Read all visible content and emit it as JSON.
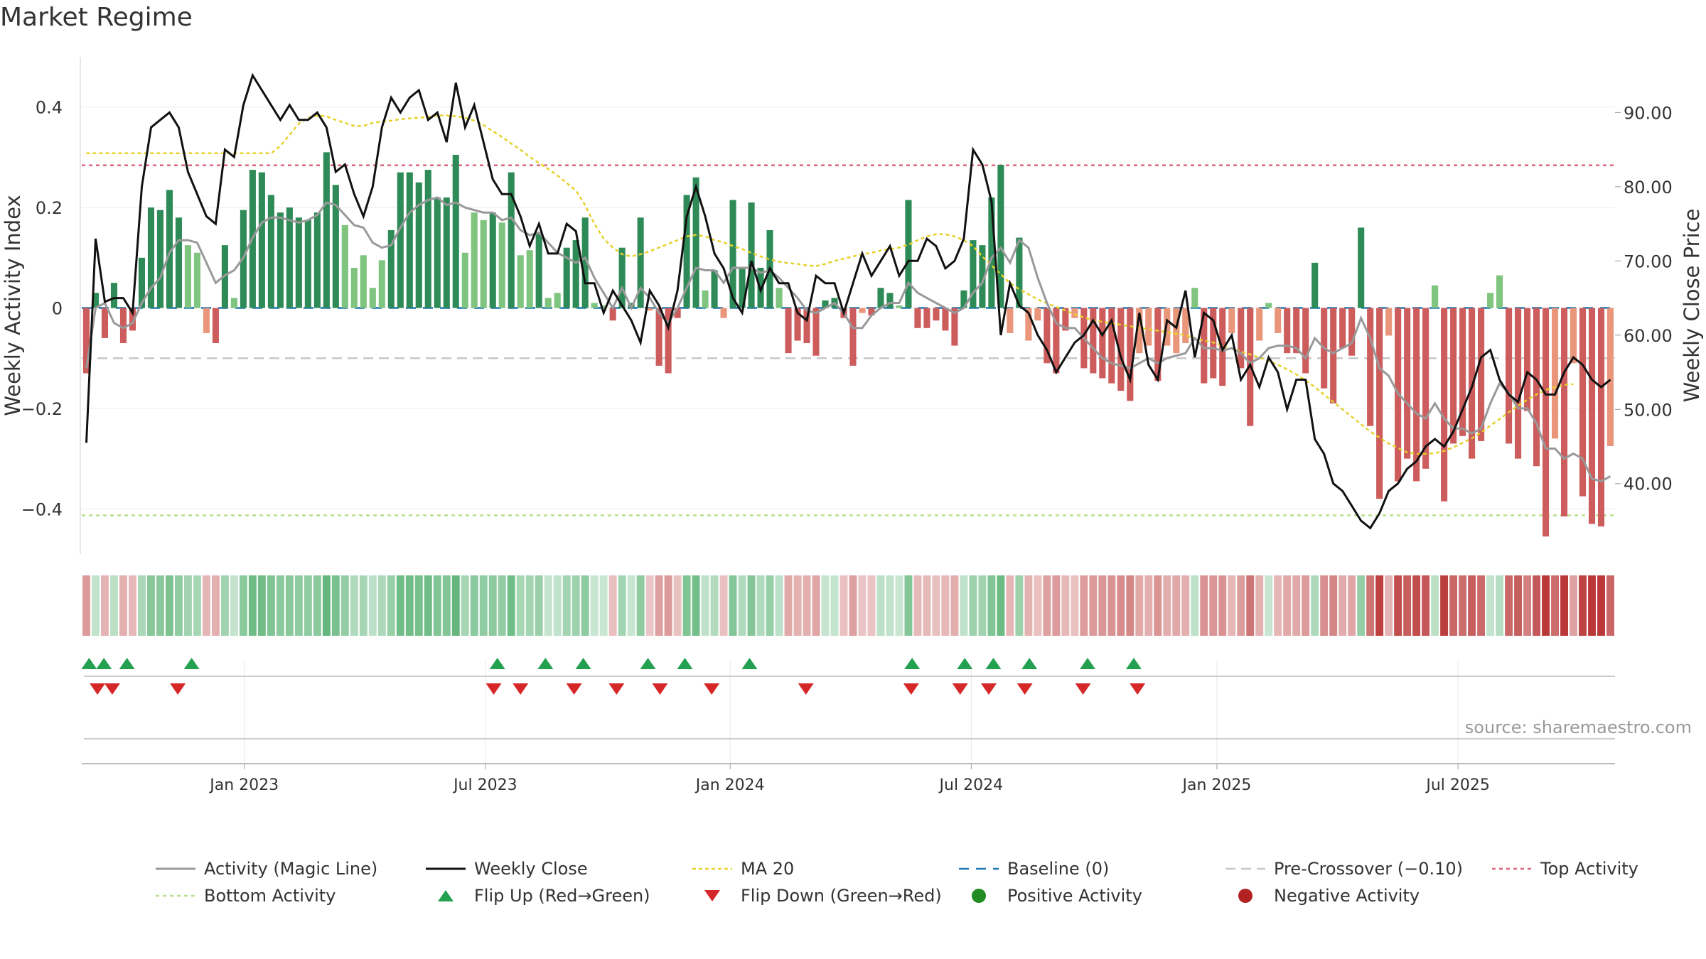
{
  "page": {
    "title": "Market Regime",
    "source": "source: sharemaestro.com"
  },
  "colors": {
    "pos_dark": "#2e8b57",
    "pos_light": "#7fc47f",
    "neg_dark": "#cd5c5c",
    "neg_light": "#e9967a",
    "close": "#111111",
    "magic": "#999999",
    "ma": "#e6d12a",
    "baseline": "#1f77b4",
    "precross": "#c8c8c8",
    "top": "#d9667a",
    "bottom": "#b5e08a",
    "flip_up": "#23a050",
    "flip_down": "#d62728"
  },
  "chart_data": {
    "type": "bar",
    "x_axis": {
      "tick_labels": [
        "Jan 2023",
        "Jul 2023",
        "Jan 2024",
        "Jul 2024",
        "Jan 2025",
        "Jul 2025"
      ],
      "tick_weeks": [
        17.6,
        43.7,
        70.2,
        96.3,
        122.9,
        149.0
      ]
    },
    "y_left": {
      "label": "Weekly Activity Index",
      "ylim": [
        -0.49,
        0.5
      ],
      "ticks": [
        0.4,
        0.2,
        0,
        -0.2,
        -0.4
      ],
      "tick_labels": [
        "0.4",
        "0.2",
        "0",
        "−0.2",
        "−0.4"
      ]
    },
    "y_right": {
      "label": "Weekly Close Price",
      "ylim": [
        30.5,
        97.5
      ],
      "ticks": [
        90,
        80,
        70,
        60,
        50,
        40
      ],
      "tick_labels": [
        "90.00",
        "80.00",
        "70.00",
        "60.00",
        "50.00",
        "40.00"
      ]
    },
    "levels": {
      "top_activity": 0.284,
      "bottom_activity": -0.413,
      "pre_crossover": -0.1,
      "baseline": 0
    },
    "activity": [
      -0.13,
      0.03,
      -0.06,
      0.05,
      -0.07,
      -0.045,
      0.1,
      0.2,
      0.195,
      0.235,
      0.18,
      0.125,
      0.11,
      -0.05,
      -0.07,
      0.125,
      0.02,
      0.195,
      0.275,
      0.27,
      0.225,
      0.19,
      0.2,
      0.18,
      0.175,
      0.19,
      0.31,
      0.245,
      0.165,
      0.08,
      0.105,
      0.04,
      0.095,
      0.155,
      0.27,
      0.27,
      0.25,
      0.275,
      0.22,
      0.22,
      0.305,
      0.11,
      0.19,
      0.175,
      0.19,
      0.17,
      0.27,
      0.105,
      0.115,
      0.15,
      0.02,
      0.03,
      0.12,
      0.135,
      0.18,
      0.01,
      0.005,
      -0.025,
      0.12,
      0.01,
      0.18,
      -0.005,
      -0.115,
      -0.13,
      -0.02,
      0.225,
      0.26,
      0.035,
      0.075,
      -0.02,
      0.215,
      0.08,
      0.21,
      0.08,
      0.155,
      0.04,
      -0.09,
      -0.065,
      -0.07,
      -0.095,
      0.015,
      0.02,
      -0.02,
      -0.115,
      -0.01,
      -0.015,
      0.04,
      0.03,
      0.005,
      0.215,
      -0.04,
      -0.04,
      -0.025,
      -0.045,
      -0.075,
      0.035,
      0.135,
      0.125,
      0.22,
      0.285,
      -0.05,
      0.14,
      -0.065,
      -0.025,
      -0.11,
      -0.13,
      -0.045,
      -0.02,
      -0.12,
      -0.13,
      -0.14,
      -0.15,
      -0.165,
      -0.185,
      -0.09,
      -0.075,
      -0.145,
      -0.075,
      -0.09,
      -0.07,
      0.04,
      -0.15,
      -0.14,
      -0.155,
      -0.05,
      -0.12,
      -0.235,
      -0.065,
      0.01,
      -0.05,
      -0.09,
      -0.09,
      -0.13,
      0.09,
      -0.16,
      -0.19,
      -0.08,
      -0.095,
      0.16,
      -0.235,
      -0.38,
      -0.055,
      -0.345,
      -0.3,
      -0.345,
      -0.32,
      0.045,
      -0.385,
      -0.27,
      -0.255,
      -0.3,
      -0.265,
      0.03,
      0.065,
      -0.27,
      -0.3,
      -0.205,
      -0.315,
      -0.455,
      -0.26,
      -0.415,
      -0.11,
      -0.375,
      -0.43,
      -0.435,
      -0.275
    ],
    "magic_line": [
      -0.12,
      0.0,
      0.01,
      -0.03,
      -0.04,
      -0.03,
      0.01,
      0.04,
      0.06,
      0.11,
      0.135,
      0.135,
      0.13,
      0.09,
      0.05,
      0.065,
      0.075,
      0.1,
      0.14,
      0.17,
      0.18,
      0.18,
      0.175,
      0.17,
      0.175,
      0.185,
      0.21,
      0.205,
      0.185,
      0.165,
      0.16,
      0.13,
      0.12,
      0.125,
      0.16,
      0.19,
      0.205,
      0.215,
      0.22,
      0.205,
      0.21,
      0.2,
      0.195,
      0.19,
      0.19,
      0.175,
      0.18,
      0.155,
      0.145,
      0.15,
      0.13,
      0.11,
      0.1,
      0.09,
      0.1,
      0.06,
      0.03,
      0.0,
      0.04,
      0.0,
      0.04,
      0.02,
      -0.01,
      -0.03,
      0.0,
      0.04,
      0.08,
      0.075,
      0.075,
      0.05,
      0.08,
      0.08,
      0.08,
      0.07,
      0.075,
      0.06,
      0.04,
      0.02,
      -0.005,
      -0.01,
      0.0,
      0.01,
      -0.01,
      -0.04,
      -0.04,
      -0.015,
      0.0,
      0.01,
      0.01,
      0.05,
      0.03,
      0.02,
      0.01,
      0.0,
      -0.01,
      0.0,
      0.03,
      0.05,
      0.1,
      0.12,
      0.09,
      0.135,
      0.12,
      0.06,
      0.01,
      -0.03,
      -0.04,
      -0.04,
      -0.06,
      -0.08,
      -0.1,
      -0.11,
      -0.115,
      -0.12,
      -0.11,
      -0.1,
      -0.11,
      -0.1,
      -0.095,
      -0.09,
      -0.06,
      -0.08,
      -0.08,
      -0.085,
      -0.08,
      -0.09,
      -0.11,
      -0.1,
      -0.08,
      -0.075,
      -0.075,
      -0.08,
      -0.1,
      -0.06,
      -0.08,
      -0.09,
      -0.08,
      -0.07,
      -0.02,
      -0.06,
      -0.12,
      -0.135,
      -0.17,
      -0.19,
      -0.21,
      -0.22,
      -0.19,
      -0.22,
      -0.24,
      -0.24,
      -0.25,
      -0.24,
      -0.19,
      -0.15,
      -0.17,
      -0.2,
      -0.2,
      -0.23,
      -0.28,
      -0.28,
      -0.3,
      -0.29,
      -0.3,
      -0.34,
      -0.345,
      -0.335
    ],
    "weekly_close": [
      45.5,
      73.0,
      64.5,
      65.0,
      65.0,
      63.0,
      80.0,
      88.0,
      89.0,
      90.0,
      88.0,
      82.0,
      79.0,
      76.0,
      75.0,
      85.0,
      84.0,
      91.0,
      95.0,
      93.0,
      91.0,
      89.0,
      91.0,
      89.0,
      89.0,
      90.0,
      88.0,
      82.0,
      83.0,
      79.0,
      76.0,
      80.0,
      88.0,
      92.0,
      90.0,
      92.0,
      93.0,
      89.0,
      90.0,
      86.0,
      94.0,
      88.0,
      91.0,
      86.0,
      81.0,
      79.0,
      79.0,
      76.0,
      72.0,
      75.0,
      71.0,
      71.0,
      75.0,
      74.0,
      67.0,
      67.0,
      63.0,
      66.0,
      64.0,
      62.0,
      59.0,
      66.0,
      64.0,
      61.0,
      66.0,
      76.0,
      80.0,
      76.0,
      71.0,
      69.0,
      65.0,
      63.0,
      70.0,
      66.0,
      69.0,
      67.0,
      67.0,
      63.0,
      62.0,
      68.0,
      67.0,
      67.0,
      63.0,
      67.0,
      71.0,
      68.0,
      70.0,
      72.0,
      68.0,
      70.0,
      70.0,
      73.0,
      72.0,
      69.0,
      70.0,
      73.0,
      85.0,
      83.0,
      78.0,
      60.0,
      67.0,
      64.0,
      63.0,
      60.0,
      58.0,
      55.0,
      57.0,
      59.0,
      60.0,
      62.0,
      60.0,
      62.0,
      57.0,
      54.0,
      63.0,
      56.0,
      54.0,
      62.0,
      61.0,
      66.0,
      57.0,
      63.0,
      62.0,
      58.0,
      60.0,
      54.0,
      56.0,
      53.0,
      57.0,
      55.0,
      50.0,
      54.0,
      54.0,
      46.0,
      44.0,
      40.0,
      39.0,
      37.0,
      35.0,
      34.0,
      36.0,
      39.0,
      40.0,
      42.0,
      43.0,
      45.0,
      46.0,
      45.0,
      47.0,
      50.0,
      53.0,
      57.0,
      58.0,
      54.0,
      52.0,
      51.0,
      55.0,
      54.0,
      52.0,
      52.0,
      55.0,
      57.0,
      56.0,
      54.0,
      53.0,
      54.0
    ],
    "ma20": [
      84.5,
      84.5,
      84.5,
      84.5,
      84.5,
      84.5,
      84.5,
      84.5,
      84.5,
      84.5,
      84.5,
      84.5,
      84.5,
      84.5,
      84.5,
      84.5,
      84.5,
      84.5,
      84.5,
      84.5,
      84.5,
      85.5,
      87.0,
      88.5,
      89.3,
      89.6,
      89.5,
      89.0,
      88.6,
      88.2,
      88.2,
      88.6,
      88.8,
      88.9,
      89.1,
      89.2,
      89.3,
      89.4,
      89.6,
      89.6,
      89.5,
      89.3,
      88.9,
      88.3,
      87.5,
      86.7,
      85.8,
      85.0,
      84.0,
      83.2,
      82.4,
      81.5,
      80.5,
      79.5,
      77.5,
      75.0,
      73.0,
      71.8,
      70.9,
      70.6,
      70.9,
      71.3,
      71.8,
      72.3,
      72.8,
      73.3,
      73.5,
      73.3,
      72.8,
      72.5,
      72.0,
      71.6,
      71.1,
      70.6,
      70.2,
      69.9,
      69.7,
      69.6,
      69.4,
      69.3,
      69.6,
      70.0,
      70.3,
      70.6,
      70.9,
      71.1,
      71.4,
      71.6,
      71.8,
      72.2,
      72.8,
      73.3,
      73.6,
      73.6,
      73.3,
      72.8,
      72.0,
      70.6,
      69.4,
      68.2,
      67.0,
      66.2,
      65.5,
      64.8,
      64.3,
      63.8,
      63.3,
      62.8,
      62.4,
      62.0,
      61.8,
      61.6,
      61.4,
      61.2,
      61.0,
      60.8,
      60.6,
      60.4,
      60.2,
      60.0,
      59.6,
      59.3,
      59.0,
      58.6,
      58.2,
      57.8,
      57.4,
      57.0,
      56.5,
      56.0,
      55.4,
      54.7,
      53.9,
      53.0,
      52.0,
      51.0,
      50.0,
      49.0,
      48.0,
      47.0,
      46.2,
      45.4,
      44.8,
      44.2,
      44.0,
      44.0,
      44.1,
      44.4,
      44.9,
      45.5,
      46.1,
      46.9,
      47.8,
      48.7,
      49.6,
      50.5,
      51.3,
      52.0,
      52.6,
      53.0,
      53.3,
      53.4
    ],
    "flip_up_weeks": [
      0.8,
      2.4,
      4.9,
      11.9,
      45.0,
      50.2,
      54.3,
      61.3,
      65.3,
      72.3,
      89.9,
      95.6,
      98.7,
      102.6,
      108.9,
      113.9
    ],
    "flip_down_weeks": [
      1.7,
      3.3,
      10.4,
      44.6,
      47.5,
      53.3,
      57.9,
      62.6,
      68.2,
      78.4,
      89.8,
      95.1,
      98.2,
      102.1,
      108.4,
      114.3
    ]
  },
  "legend": [
    {
      "key": "magic",
      "label": "Activity (Magic Line)"
    },
    {
      "key": "close",
      "label": "Weekly Close"
    },
    {
      "key": "ma",
      "label": "MA 20"
    },
    {
      "key": "baseline",
      "label": "Baseline (0)"
    },
    {
      "key": "precross",
      "label": "Pre-Crossover (−0.10)"
    },
    {
      "key": "top",
      "label": "Top Activity"
    },
    {
      "key": "bottom",
      "label": "Bottom Activity"
    },
    {
      "key": "flip_up",
      "label": "Flip Up (Red→Green)"
    },
    {
      "key": "flip_down",
      "label": "Flip Down (Green→Red)"
    },
    {
      "key": "pos_dot",
      "label": "Positive Activity"
    },
    {
      "key": "neg_dot",
      "label": "Negative Activity"
    }
  ]
}
